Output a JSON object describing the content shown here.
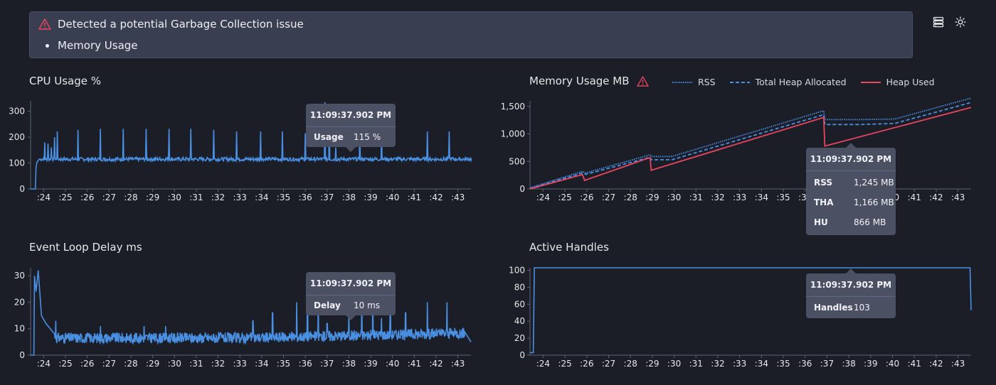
{
  "alert": {
    "title": "Detected a potential Garbage Collection issue",
    "items": [
      "Memory Usage"
    ]
  },
  "toolbar": {
    "icons": [
      "list-view-icon",
      "theme-toggle-icon"
    ]
  },
  "colors": {
    "accent": "#4a90e2",
    "heap_used": "#e8465f",
    "warn": "#e8465f",
    "panel": "#393e51",
    "background": "#1b1d27"
  },
  "x_ticks": [
    ":24",
    ":25",
    ":26",
    ":27",
    ":28",
    ":29",
    ":30",
    ":31",
    ":32",
    ":33",
    ":34",
    ":35",
    ":36",
    ":37",
    ":38",
    ":39",
    ":40",
    ":41",
    ":42",
    ":43"
  ],
  "cpu": {
    "title": "CPU Usage %",
    "tooltip": {
      "time": "11:09:37.902 PM",
      "label": "Usage",
      "value": "115 %"
    }
  },
  "memory": {
    "title": "Memory Usage MB",
    "legend": {
      "rss": "RSS",
      "tha": "Total Heap Allocated",
      "hu": "Heap Used"
    },
    "tooltip": {
      "time": "11:09:37.902 PM",
      "rows": [
        {
          "label": "RSS",
          "value": "1,245 MB"
        },
        {
          "label": "THA",
          "value": "1,166 MB"
        },
        {
          "label": "HU",
          "value": "866 MB"
        }
      ]
    }
  },
  "event_loop": {
    "title": "Event Loop Delay ms",
    "tooltip": {
      "time": "11:09:37.902 PM",
      "label": "Delay",
      "value": "10 ms"
    }
  },
  "handles": {
    "title": "Active Handles",
    "tooltip": {
      "time": "11:09:37.902 PM",
      "label": "Handles",
      "value": "103"
    }
  },
  "chart_data": [
    {
      "type": "line",
      "title": "CPU Usage %",
      "x_start": 23.4,
      "x_end": 43.6,
      "ylim": [
        0,
        340
      ],
      "yticks": [
        0,
        100,
        200,
        300
      ],
      "baseline": 115,
      "ramp": [
        [
          23.4,
          0
        ],
        [
          23.62,
          0
        ],
        [
          23.65,
          85
        ],
        [
          23.7,
          105
        ],
        [
          23.8,
          115
        ]
      ],
      "spikes": [
        [
          24.05,
          180
        ],
        [
          24.2,
          175
        ],
        [
          24.35,
          160
        ],
        [
          24.5,
          200
        ],
        [
          24.62,
          222
        ],
        [
          25.58,
          228
        ],
        [
          26.6,
          232
        ],
        [
          27.65,
          232
        ],
        [
          28.7,
          232
        ],
        [
          29.75,
          232
        ],
        [
          30.75,
          232
        ],
        [
          31.8,
          228
        ],
        [
          32.85,
          222
        ],
        [
          33.95,
          222
        ],
        [
          34.95,
          222
        ],
        [
          36.0,
          215
        ],
        [
          36.9,
          335
        ],
        [
          37.1,
          290
        ],
        [
          37.4,
          160
        ],
        [
          38.5,
          222
        ],
        [
          39.5,
          215
        ],
        [
          41.6,
          222
        ],
        [
          42.6,
          222
        ]
      ],
      "ylabel": "",
      "xlabel": ""
    },
    {
      "type": "line",
      "title": "Memory Usage MB",
      "x_start": 23.4,
      "x_end": 43.6,
      "ylim": [
        0,
        1600
      ],
      "yticks": [
        0,
        500,
        1000,
        1500
      ],
      "series": [
        {
          "name": "RSS",
          "points": [
            [
              23.4,
              20
            ],
            [
              25.8,
              320
            ],
            [
              25.95,
              290
            ],
            [
              28.9,
              620
            ],
            [
              28.95,
              590
            ],
            [
              29.9,
              590
            ],
            [
              36.85,
              1420
            ],
            [
              36.9,
              1260
            ],
            [
              38.5,
              1260
            ],
            [
              40.1,
              1270
            ],
            [
              43.6,
              1650
            ]
          ]
        },
        {
          "name": "Total Heap Allocated",
          "points": [
            [
              23.4,
              10
            ],
            [
              25.8,
              290
            ],
            [
              25.95,
              265
            ],
            [
              28.9,
              575
            ],
            [
              28.95,
              530
            ],
            [
              29.9,
              530
            ],
            [
              36.85,
              1350
            ],
            [
              36.9,
              1170
            ],
            [
              38.5,
              1170
            ],
            [
              40.1,
              1190
            ],
            [
              43.6,
              1570
            ]
          ]
        },
        {
          "name": "Heap Used",
          "points": [
            [
              23.4,
              0
            ],
            [
              25.8,
              260
            ],
            [
              25.9,
              155
            ],
            [
              28.9,
              570
            ],
            [
              28.95,
              340
            ],
            [
              36.85,
              1300
            ],
            [
              36.9,
              780
            ],
            [
              43.6,
              1480
            ]
          ]
        }
      ]
    },
    {
      "type": "line",
      "title": "Event Loop Delay ms",
      "x_start": 23.4,
      "x_end": 43.6,
      "ylim": [
        0,
        33
      ],
      "yticks": [
        0,
        10,
        20,
        30
      ],
      "baseline": 6.5,
      "ramp": [
        [
          23.4,
          0
        ],
        [
          23.55,
          0
        ],
        [
          23.58,
          30
        ],
        [
          23.65,
          24
        ],
        [
          23.75,
          32
        ],
        [
          23.9,
          15
        ],
        [
          24.1,
          12
        ],
        [
          24.5,
          8
        ]
      ],
      "spikes": [
        [
          24.55,
          13
        ],
        [
          26.6,
          11
        ],
        [
          28.6,
          11
        ],
        [
          29.6,
          11
        ],
        [
          33.6,
          13
        ],
        [
          34.5,
          16
        ],
        [
          35.6,
          20
        ],
        [
          36.1,
          18
        ],
        [
          36.6,
          22
        ],
        [
          37.0,
          12
        ],
        [
          38.0,
          15
        ],
        [
          38.6,
          22
        ],
        [
          39.1,
          25
        ],
        [
          39.5,
          14
        ],
        [
          39.9,
          16
        ],
        [
          40.6,
          16
        ],
        [
          41.6,
          20
        ],
        [
          42.5,
          20
        ]
      ],
      "tail": [
        [
          43.3,
          9
        ],
        [
          43.6,
          5
        ]
      ]
    },
    {
      "type": "line",
      "title": "Active Handles",
      "x_start": 23.4,
      "x_end": 43.6,
      "ylim": [
        0,
        103
      ],
      "yticks": [
        0,
        20,
        40,
        60,
        80,
        100
      ],
      "points": [
        [
          23.4,
          3
        ],
        [
          23.55,
          3
        ],
        [
          23.6,
          103
        ],
        [
          43.55,
          103
        ],
        [
          43.6,
          53
        ]
      ]
    }
  ]
}
